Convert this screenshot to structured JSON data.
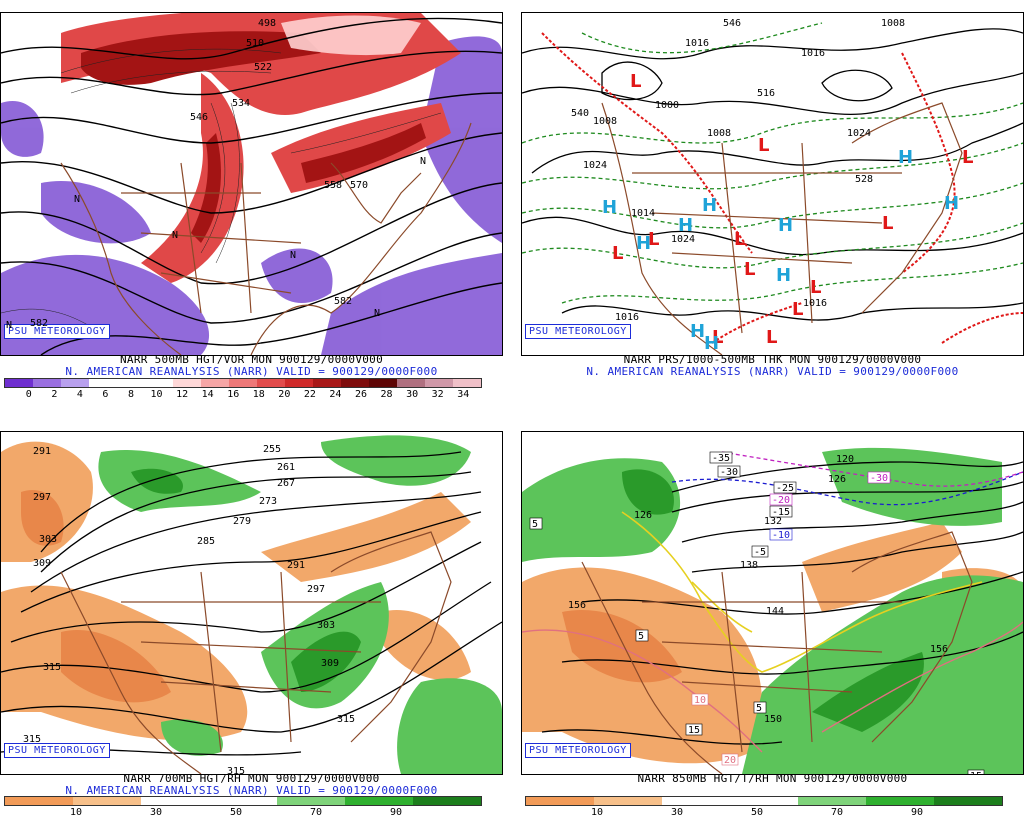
{
  "panels": [
    {
      "id": "tl",
      "logo": "PSU METEOROLOGY",
      "line1": "NARR 500MB HGT/VOR MON 900129/0000V000",
      "line2": "N. AMERICAN REANALYSIS (NARR) VALID = 900129/0000F000",
      "scale_ticks": [
        "0",
        "2",
        "4",
        "6",
        "8",
        "10",
        "12",
        "14",
        "16",
        "18",
        "20",
        "22",
        "24",
        "26",
        "28",
        "30",
        "32",
        "34"
      ],
      "labels": [
        "582",
        "582",
        "498",
        "510",
        "522",
        "534",
        "546",
        "558",
        "570",
        "N",
        "N",
        "N",
        "N",
        "N",
        "N"
      ]
    },
    {
      "id": "tr",
      "logo": "PSU METEOROLOGY",
      "line1": "NARR PRS/1000-500MB THK MON 900129/0000V000",
      "line2": "N. AMERICAN REANALYSIS (NARR) VALID = 900129/0000F000",
      "labels": [
        "1016",
        "1016",
        "1008",
        "1000",
        "1008",
        "1024",
        "1014",
        "1024",
        "1016",
        "1016",
        "1008",
        "1024",
        "516",
        "528",
        "540",
        "546"
      ]
    },
    {
      "id": "bl",
      "logo": "PSU METEOROLOGY",
      "line1": "NARR 700MB HGT/RH MON 900129/0000V000",
      "line2": "N. AMERICAN REANALYSIS (NARR) VALID = 900129/0000F000",
      "scale_ticks": [
        "10",
        "30",
        "50",
        "70",
        "90"
      ],
      "labels": [
        "255",
        "261",
        "267",
        "273",
        "279",
        "285",
        "291",
        "297",
        "303",
        "309",
        "315",
        "315",
        "315",
        "315",
        "291",
        "297",
        "303",
        "309"
      ]
    },
    {
      "id": "br",
      "logo": "PSU METEOROLOGY",
      "line1": "NARR 850MB HGT/T/RH MON 900129/0000V000",
      "scale_ticks": [
        "10",
        "30",
        "50",
        "70",
        "90"
      ],
      "labels": [
        "-35",
        "-30",
        "-25",
        "-20",
        "-15",
        "-10",
        "-5",
        "-30",
        "5",
        "5",
        "10",
        "15",
        "20",
        "5",
        "15",
        "156",
        "156",
        "150",
        "144",
        "138",
        "132",
        "126",
        "120",
        "126"
      ]
    }
  ],
  "colors": {
    "vor_scale": [
      "#6f2fd0",
      "#9a6fe0",
      "#b8a0ee",
      "#ffffff",
      "#ffffff",
      "#ffffff",
      "#ffd8d8",
      "#f6a6a6",
      "#ee7878",
      "#e24c4c",
      "#cf2a2a",
      "#a81818",
      "#7e0c0c",
      "#5e0505",
      "#b07080",
      "#d098a8",
      "#f0c0c8"
    ],
    "rh_scale": [
      "#f29b58",
      "#f7c08a",
      "#ffffff",
      "#ffffff",
      "#7fd37a",
      "#2fb02f",
      "#1c7e1c"
    ]
  }
}
